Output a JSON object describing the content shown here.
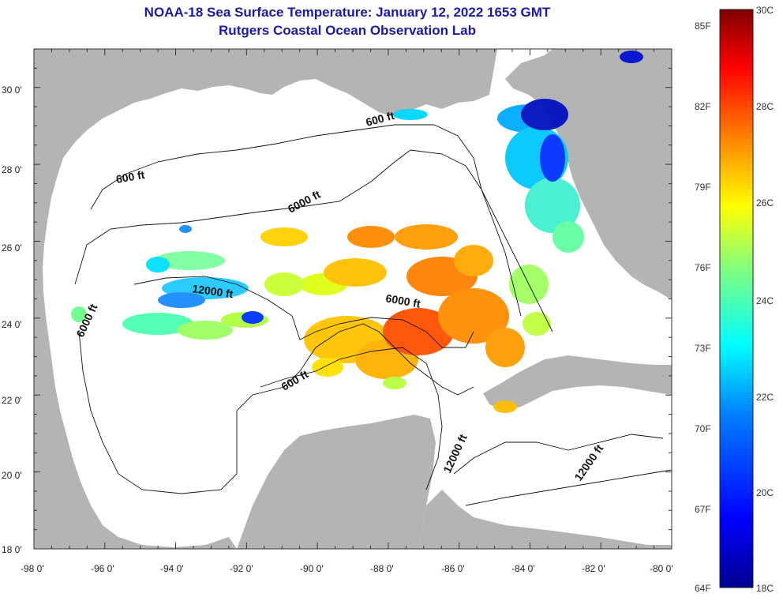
{
  "header": {
    "title": "NOAA-18 Sea Surface Temperature:  January 12, 2022 1653 GMT",
    "subtitle": "Rutgers Coastal Ocean Observation Lab"
  },
  "map": {
    "lon_range": [
      -98,
      -80
    ],
    "lat_range": [
      18,
      31
    ],
    "lon_ticks": [
      "-98 0'",
      "-96 0'",
      "-94 0'",
      "-92 0'",
      "-90 0'",
      "-88 0'",
      "-86 0'",
      "-84 0'",
      "-82 0'",
      "-80 0'"
    ],
    "lat_ticks": [
      "30 0'",
      "28 0'",
      "26 0'",
      "24 0'",
      "22 0'",
      "20 0'",
      "18 0'"
    ],
    "land_color": "#b4b4b4",
    "ocean_color": "#ffffff",
    "contour_labels": [
      "600 ft",
      "600 ft",
      "6000 ft",
      "12000 ft",
      "6000 ft",
      "6000 ft",
      "600 ft",
      "12000 ft",
      "12000 ft"
    ]
  },
  "colorbar": {
    "fahrenheit": [
      "85F",
      "82F",
      "79F",
      "76F",
      "73F",
      "70F",
      "67F",
      "64F"
    ],
    "celsius": [
      "30C",
      "28C",
      "26C",
      "24C",
      "22C",
      "20C",
      "18C"
    ],
    "range_c": [
      18,
      30
    ],
    "range_f": [
      64,
      86
    ],
    "colors": [
      "#00008f",
      "#0000ff",
      "#0080ff",
      "#00ffff",
      "#80ff80",
      "#ffff00",
      "#ff8000",
      "#ff0000",
      "#800000"
    ]
  }
}
